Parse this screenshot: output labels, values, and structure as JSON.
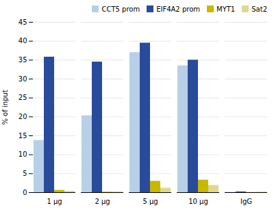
{
  "chart_data": {
    "type": "bar",
    "categories": [
      "1 μg",
      "2 μg",
      "5 μg",
      "10 μg",
      "IgG"
    ],
    "series": [
      {
        "name": "CCT5 prom",
        "color": "#b8cfe8",
        "values": [
          13.8,
          20.3,
          37.0,
          33.5,
          0.1
        ]
      },
      {
        "name": "EIF4A2 prom",
        "color": "#2a4a9a",
        "values": [
          35.8,
          34.5,
          39.5,
          35.0,
          0.2
        ]
      },
      {
        "name": "MYT1",
        "color": "#c8b800",
        "values": [
          0.6,
          0.15,
          3.0,
          3.3,
          0.05
        ]
      },
      {
        "name": "Sat2",
        "color": "#e0d890",
        "values": [
          0.35,
          0.2,
          1.2,
          1.9,
          0.15
        ]
      }
    ],
    "ylabel": "% of input",
    "ylim": [
      0,
      45
    ],
    "yticks": [
      0,
      5,
      10,
      15,
      20,
      25,
      30,
      35,
      40,
      45
    ],
    "grid": true,
    "legend": "upper right"
  }
}
